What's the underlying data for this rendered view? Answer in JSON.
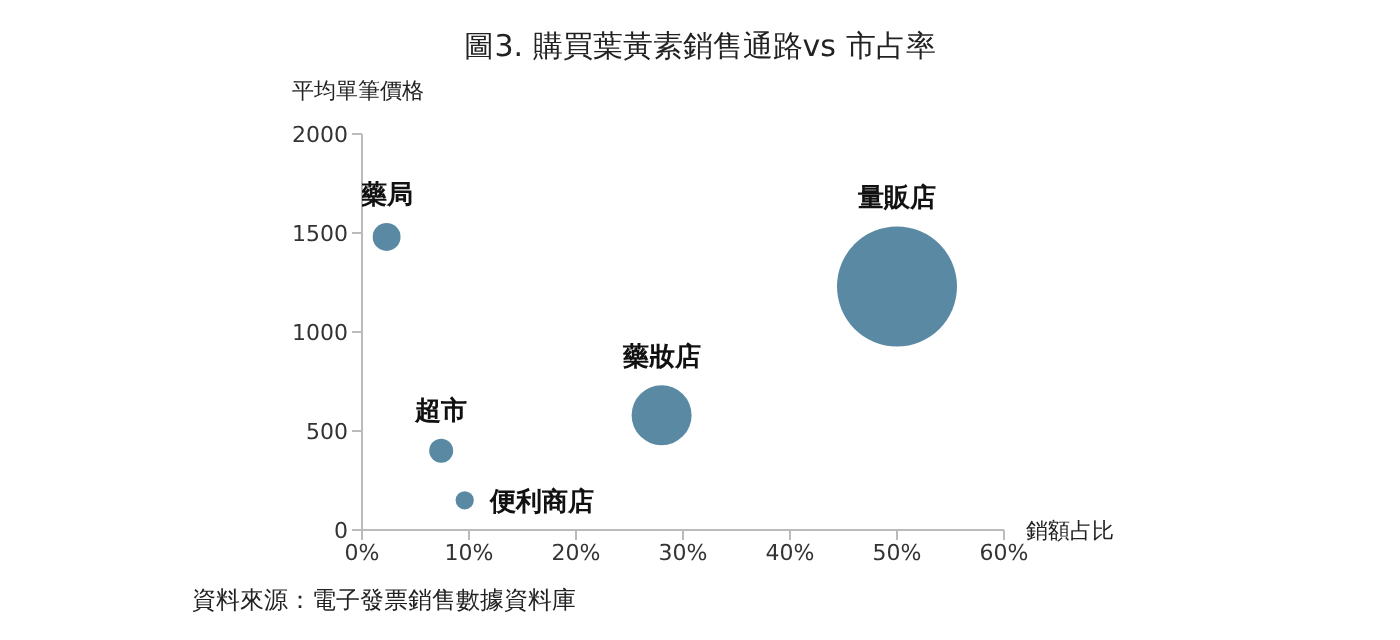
{
  "chart_data": {
    "type": "bubble",
    "title": "圖3. 購買葉黃素銷售通路vs 市占率",
    "xlabel": "銷額占比",
    "ylabel": "平均單筆價格",
    "series": [
      {
        "name": "藥局",
        "color": "#5a8aa3",
        "x": [
          2.3
        ],
        "values": [
          1480
        ],
        "sizes": [
          0.054
        ]
      },
      {
        "name": "超市",
        "color": "#5a8aa3",
        "x": [
          7.4
        ],
        "values": [
          400
        ],
        "sizes": [
          0.04
        ]
      },
      {
        "name": "便利商店",
        "color": "#5a8aa3",
        "x": [
          9.6
        ],
        "values": [
          150
        ],
        "sizes": [
          0.023
        ]
      },
      {
        "name": "藥妝店",
        "color": "#5a8aa3",
        "x": [
          28
        ],
        "values": [
          580
        ],
        "sizes": [
          0.25
        ]
      },
      {
        "name": "量販店",
        "color": "#5a8aa3",
        "x": [
          50
        ],
        "values": [
          1230
        ],
        "sizes": [
          1
        ]
      }
    ],
    "xlim": [
      0,
      60
    ],
    "xticks": [
      {
        "value": 0,
        "label": "0%"
      },
      {
        "value": 10,
        "label": "10%"
      },
      {
        "value": 20,
        "label": "20%"
      },
      {
        "value": 30,
        "label": "30%"
      },
      {
        "value": 40,
        "label": "40%"
      },
      {
        "value": 50,
        "label": "50%"
      },
      {
        "value": 60,
        "label": "60%"
      }
    ],
    "ylim": [
      0,
      2000
    ],
    "yticks": [
      0,
      500,
      1000,
      1500,
      2000
    ],
    "grid": false,
    "legend": false,
    "annotations": [
      "資料來源：電子發票銷售數據資料庫"
    ]
  }
}
